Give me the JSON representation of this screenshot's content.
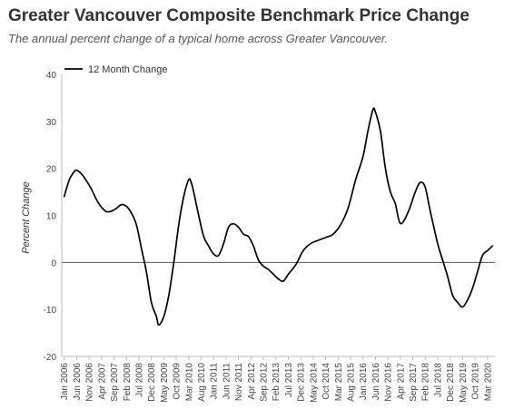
{
  "chart_data": {
    "type": "line",
    "title": "Greater Vancouver Composite Benchmark Price Change",
    "subtitle": "The annual percent change of a typical home across Greater Vancouver.",
    "ylabel": "Percent Change",
    "xlabel": "",
    "ylim": [
      -20,
      40
    ],
    "yticks": [
      -20,
      -10,
      0,
      10,
      20,
      30,
      40
    ],
    "grid": false,
    "legend": "top-left",
    "x_tick_labels": [
      {
        "label": "Jan 2006",
        "x": 2006.0
      },
      {
        "label": "Jun 2006",
        "x": 2006.417
      },
      {
        "label": "Nov 2006",
        "x": 2006.833
      },
      {
        "label": "Apr 2007",
        "x": 2007.25
      },
      {
        "label": "Sep 2007",
        "x": 2007.667
      },
      {
        "label": "Feb 2008",
        "x": 2008.083
      },
      {
        "label": "Jul 2008",
        "x": 2008.5
      },
      {
        "label": "Dec 2008",
        "x": 2008.917
      },
      {
        "label": "May 2009",
        "x": 2009.333
      },
      {
        "label": "Oct 2009",
        "x": 2009.75
      },
      {
        "label": "Mar 2010",
        "x": 2010.167
      },
      {
        "label": "Aug 2010",
        "x": 2010.583
      },
      {
        "label": "Jan 2011",
        "x": 2011.0
      },
      {
        "label": "Jun 2011",
        "x": 2011.417
      },
      {
        "label": "Nov 2011",
        "x": 2011.833
      },
      {
        "label": "Apr 2012",
        "x": 2012.25
      },
      {
        "label": "Sep 2012",
        "x": 2012.667
      },
      {
        "label": "Feb 2013",
        "x": 2013.083
      },
      {
        "label": "Jul 2013",
        "x": 2013.5
      },
      {
        "label": "Dec 2013",
        "x": 2013.917
      },
      {
        "label": "May 2014",
        "x": 2014.333
      },
      {
        "label": "Oct 2014",
        "x": 2014.75
      },
      {
        "label": "Mar 2015",
        "x": 2015.167
      },
      {
        "label": "Aug 2015",
        "x": 2015.583
      },
      {
        "label": "Jan 2016",
        "x": 2016.0
      },
      {
        "label": "Jun 2016",
        "x": 2016.417
      },
      {
        "label": "Nov 2016",
        "x": 2016.833
      },
      {
        "label": "Apr 2017",
        "x": 2017.25
      },
      {
        "label": "Sep 2017",
        "x": 2017.667
      },
      {
        "label": "Feb 2018",
        "x": 2018.083
      },
      {
        "label": "Jul 2018",
        "x": 2018.5
      },
      {
        "label": "Dec 2018",
        "x": 2018.917
      },
      {
        "label": "May 2019",
        "x": 2019.333
      },
      {
        "label": "Oct 2019",
        "x": 2019.75
      },
      {
        "label": "Mar 2020",
        "x": 2020.167
      }
    ],
    "series": [
      {
        "name": "12 Month Change",
        "color": "#000000",
        "points": [
          [
            2006.0,
            14
          ],
          [
            2006.167,
            17.5
          ],
          [
            2006.333,
            19.3
          ],
          [
            2006.417,
            19.6
          ],
          [
            2006.583,
            18.8
          ],
          [
            2006.75,
            17.3
          ],
          [
            2006.917,
            15.5
          ],
          [
            2007.083,
            13.3
          ],
          [
            2007.25,
            11.7
          ],
          [
            2007.417,
            10.8
          ],
          [
            2007.583,
            10.9
          ],
          [
            2007.75,
            11.5
          ],
          [
            2007.917,
            12.3
          ],
          [
            2008.083,
            11.9
          ],
          [
            2008.25,
            10.5
          ],
          [
            2008.417,
            8
          ],
          [
            2008.583,
            3
          ],
          [
            2008.75,
            -2
          ],
          [
            2008.917,
            -8.5
          ],
          [
            2009.083,
            -11.5
          ],
          [
            2009.167,
            -13.3
          ],
          [
            2009.333,
            -11.5
          ],
          [
            2009.5,
            -7
          ],
          [
            2009.667,
            0
          ],
          [
            2009.833,
            8
          ],
          [
            2010.0,
            14
          ],
          [
            2010.167,
            17.6
          ],
          [
            2010.25,
            17
          ],
          [
            2010.333,
            15
          ],
          [
            2010.5,
            10
          ],
          [
            2010.667,
            5.5
          ],
          [
            2010.833,
            3.5
          ],
          [
            2011.0,
            1.8
          ],
          [
            2011.167,
            1.5
          ],
          [
            2011.333,
            4
          ],
          [
            2011.5,
            7.5
          ],
          [
            2011.667,
            8.2
          ],
          [
            2011.833,
            7.5
          ],
          [
            2012.0,
            6
          ],
          [
            2012.167,
            5.5
          ],
          [
            2012.333,
            3.5
          ],
          [
            2012.5,
            0.5
          ],
          [
            2012.667,
            -0.8
          ],
          [
            2012.833,
            -1.5
          ],
          [
            2013.0,
            -2.5
          ],
          [
            2013.167,
            -3.5
          ],
          [
            2013.333,
            -4
          ],
          [
            2013.5,
            -2.5
          ],
          [
            2013.75,
            -0.5
          ],
          [
            2014.0,
            2.5
          ],
          [
            2014.25,
            4
          ],
          [
            2014.5,
            4.7
          ],
          [
            2014.75,
            5.3
          ],
          [
            2015.0,
            6
          ],
          [
            2015.25,
            8
          ],
          [
            2015.5,
            11.5
          ],
          [
            2015.75,
            17.5
          ],
          [
            2016.0,
            22.5
          ],
          [
            2016.167,
            28
          ],
          [
            2016.333,
            32.5
          ],
          [
            2016.417,
            32
          ],
          [
            2016.583,
            28
          ],
          [
            2016.75,
            20
          ],
          [
            2016.917,
            15
          ],
          [
            2017.083,
            12.5
          ],
          [
            2017.25,
            8.3
          ],
          [
            2017.5,
            10.5
          ],
          [
            2017.75,
            15
          ],
          [
            2017.917,
            17
          ],
          [
            2018.083,
            16
          ],
          [
            2018.25,
            11
          ],
          [
            2018.5,
            4
          ],
          [
            2018.667,
            0.5
          ],
          [
            2018.833,
            -3
          ],
          [
            2019.0,
            -7
          ],
          [
            2019.167,
            -8.5
          ],
          [
            2019.333,
            -9.5
          ],
          [
            2019.5,
            -8
          ],
          [
            2019.667,
            -5.5
          ],
          [
            2019.833,
            -2
          ],
          [
            2020.0,
            1.5
          ],
          [
            2020.167,
            2.5
          ],
          [
            2020.333,
            3.5
          ]
        ]
      }
    ]
  }
}
